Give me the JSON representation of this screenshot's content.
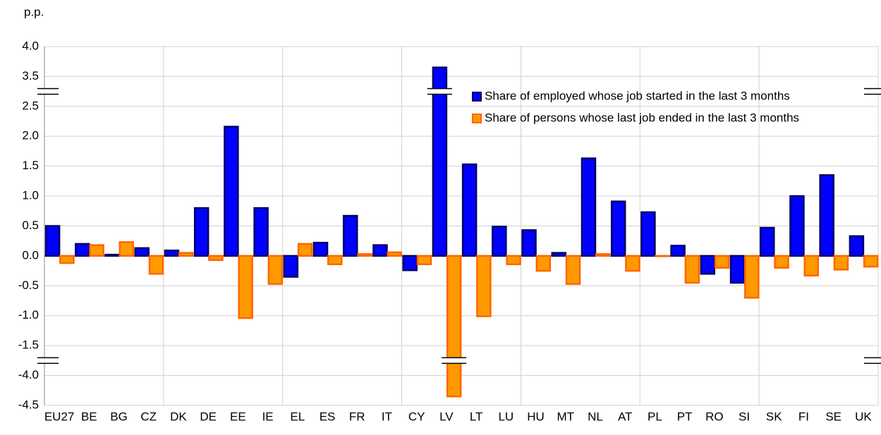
{
  "chart_data": {
    "type": "bar",
    "y_axis_label": "p.p.",
    "categories": [
      "EU27",
      "BE",
      "BG",
      "CZ",
      "DK",
      "DE",
      "EE",
      "IE",
      "EL",
      "ES",
      "FR",
      "IT",
      "CY",
      "LV",
      "LT",
      "LU",
      "HU",
      "MT",
      "NL",
      "AT",
      "PL",
      "PT",
      "RO",
      "SI",
      "SK",
      "FI",
      "SE",
      "UK"
    ],
    "series": [
      {
        "name": "Share of employed whose job started in the last 3 months",
        "color": "#0000ff",
        "edge": "#000066",
        "values": [
          0.5,
          0.2,
          0.02,
          0.13,
          0.09,
          0.8,
          2.16,
          0.8,
          -0.35,
          0.22,
          0.67,
          0.18,
          -0.24,
          3.65,
          1.53,
          0.49,
          0.43,
          0.05,
          1.63,
          0.91,
          0.73,
          0.17,
          -0.3,
          -0.45,
          0.47,
          1.0,
          1.35,
          0.33
        ]
      },
      {
        "name": "Share of persons whose last job ended in the last 3 months",
        "color": "#ff9900",
        "edge": "#ff6600",
        "values": [
          -0.12,
          0.18,
          0.23,
          -0.3,
          0.05,
          -0.07,
          -1.04,
          -0.47,
          0.2,
          -0.14,
          0.03,
          0.06,
          -0.14,
          -4.35,
          -1.01,
          -0.14,
          -0.25,
          -0.47,
          0.03,
          -0.25,
          0.0,
          -0.45,
          -0.2,
          -0.7,
          -0.2,
          -0.33,
          -0.23,
          -0.18
        ]
      }
    ],
    "ylim": [
      -4.5,
      4.0
    ],
    "yticks": [
      {
        "value": 4.0,
        "label": "4.0"
      },
      {
        "value": 3.5,
        "label": "3.5"
      },
      {
        "value": 2.5,
        "label": "2.5"
      },
      {
        "value": 2.0,
        "label": "2.0"
      },
      {
        "value": 1.5,
        "label": "1.5"
      },
      {
        "value": 1.0,
        "label": "1.0"
      },
      {
        "value": 0.5,
        "label": "0.5"
      },
      {
        "value": 0.0,
        "label": "0.0"
      },
      {
        "value": -0.5,
        "label": "-0.5"
      },
      {
        "value": -1.0,
        "label": "-1.0"
      },
      {
        "value": -1.5,
        "label": "-1.5"
      },
      {
        "value": -4.0,
        "label": "-4.0"
      },
      {
        "value": -4.5,
        "label": "-4.5"
      }
    ],
    "grid": true,
    "legend": "top-right"
  }
}
